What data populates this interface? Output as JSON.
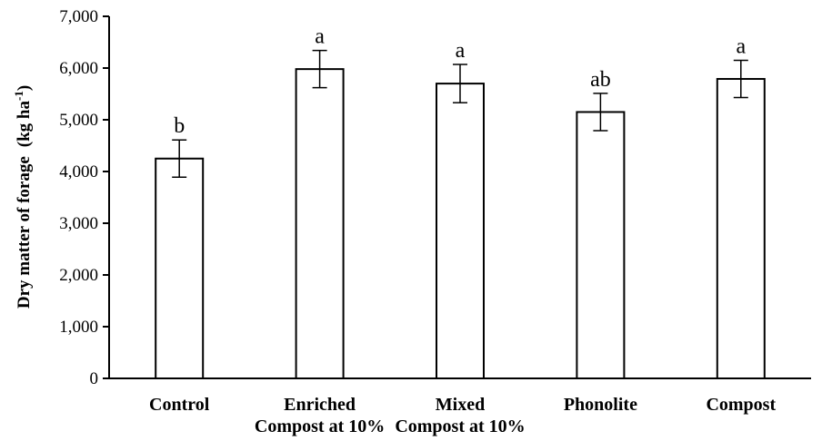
{
  "chart_data": {
    "type": "bar",
    "ylabel": "Dry matter of forage",
    "ylabel_unit": "(kg ha",
    "ylabel_exponent": "-1",
    "ylabel_close": ")",
    "ylim": [
      0,
      7000
    ],
    "yticks": [
      0,
      1000,
      2000,
      3000,
      4000,
      5000,
      6000,
      7000
    ],
    "ytick_labels": [
      "0",
      "1,000",
      "2,000",
      "3,000",
      "4,000",
      "5,000",
      "6,000",
      "7,000"
    ],
    "categories": [
      [
        "Control"
      ],
      [
        "Enriched",
        "Compost at 10%"
      ],
      [
        "Mixed",
        "Compost at 10%"
      ],
      [
        "Phonolite"
      ],
      [
        "Compost"
      ]
    ],
    "values": [
      4250,
      5980,
      5700,
      5150,
      5790
    ],
    "errors": [
      360,
      360,
      370,
      360,
      360
    ],
    "significance": [
      "b",
      "a",
      "a",
      "ab",
      "a"
    ],
    "grid": false,
    "bar_color": "#ffffff",
    "bar_edge_color": "#000000"
  }
}
